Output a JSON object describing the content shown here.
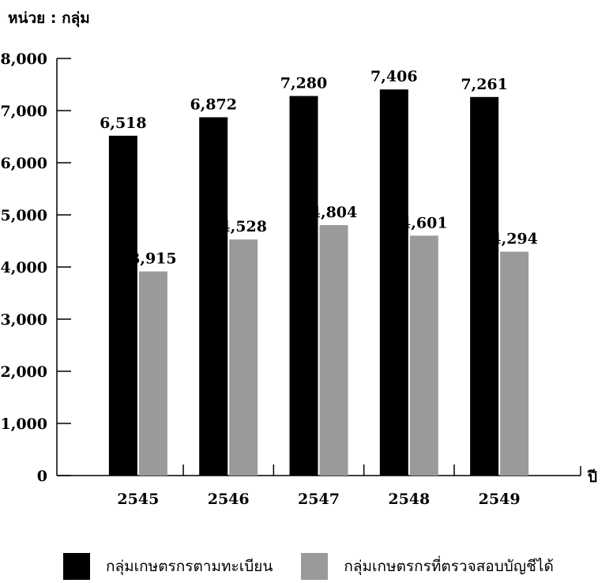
{
  "unit_label": "หน่วย : กลุ่ม",
  "x_axis_unit": "ปี",
  "colors": {
    "series1": "#000000",
    "series2": "#9a9a9a"
  },
  "chart_data": {
    "type": "bar",
    "categories": [
      "2545",
      "2546",
      "2547",
      "2548",
      "2549"
    ],
    "series": [
      {
        "name": "กลุ่มเกษตรกรตามทะเบียน",
        "values": [
          6518,
          6872,
          7280,
          7406,
          7261
        ]
      },
      {
        "name": "กลุ่มเกษตรกรที่ตรวจสอบบัญชีได้",
        "values": [
          3915,
          4528,
          4804,
          4601,
          4294
        ]
      }
    ],
    "value_labels": [
      [
        "6,518",
        "6,872",
        "7,280",
        "7,406",
        "7,261"
      ],
      [
        "3,915",
        "4,528",
        "4,804",
        "4,601",
        "4,294"
      ]
    ],
    "yticks": [
      0,
      1000,
      2000,
      3000,
      4000,
      5000,
      6000,
      7000,
      8000
    ],
    "ytick_labels": [
      "0",
      "1,000",
      "2,000",
      "3,000",
      "4,000",
      "5,000",
      "6,000",
      "7,000",
      "8,000"
    ],
    "ylim": [
      0,
      8000
    ],
    "grid": false,
    "legend_position": "bottom"
  }
}
